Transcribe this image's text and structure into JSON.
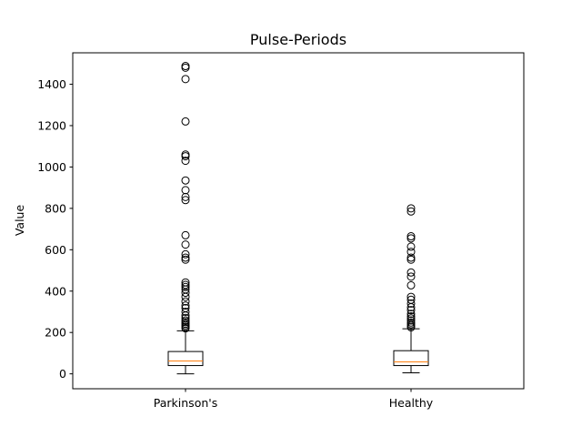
{
  "chart_data": {
    "type": "box",
    "title": "Pulse-Periods",
    "xlabel": "",
    "ylabel": "Value",
    "ylim": [
      -72,
      1552
    ],
    "yticks": [
      0,
      200,
      400,
      600,
      800,
      1000,
      1200,
      1400
    ],
    "categories": [
      "Parkinson's",
      "Healthy"
    ],
    "grid": false,
    "colors": {
      "box": "#000000",
      "median": "#ff7f0e",
      "flier": "#000000"
    },
    "boxes": [
      {
        "name": "Parkinson's",
        "whisker_low": 0,
        "q1": 40,
        "median": 62,
        "q3": 108,
        "whisker_high": 208,
        "fliers": [
          220,
          228,
          235,
          242,
          250,
          258,
          270,
          282,
          300,
          318,
          330,
          350,
          372,
          392,
          408,
          420,
          430,
          442,
          552,
          562,
          578,
          625,
          670,
          840,
          855,
          888,
          935,
          1030,
          1052,
          1060,
          1220,
          1425,
          1480,
          1488
        ]
      },
      {
        "name": "Healthy",
        "whisker_low": 5,
        "q1": 40,
        "median": 58,
        "q3": 112,
        "whisker_high": 218,
        "fliers": [
          225,
          232,
          240,
          248,
          258,
          268,
          278,
          290,
          308,
          322,
          340,
          358,
          372,
          428,
          470,
          490,
          552,
          562,
          590,
          615,
          655,
          665,
          785,
          800
        ]
      }
    ]
  }
}
